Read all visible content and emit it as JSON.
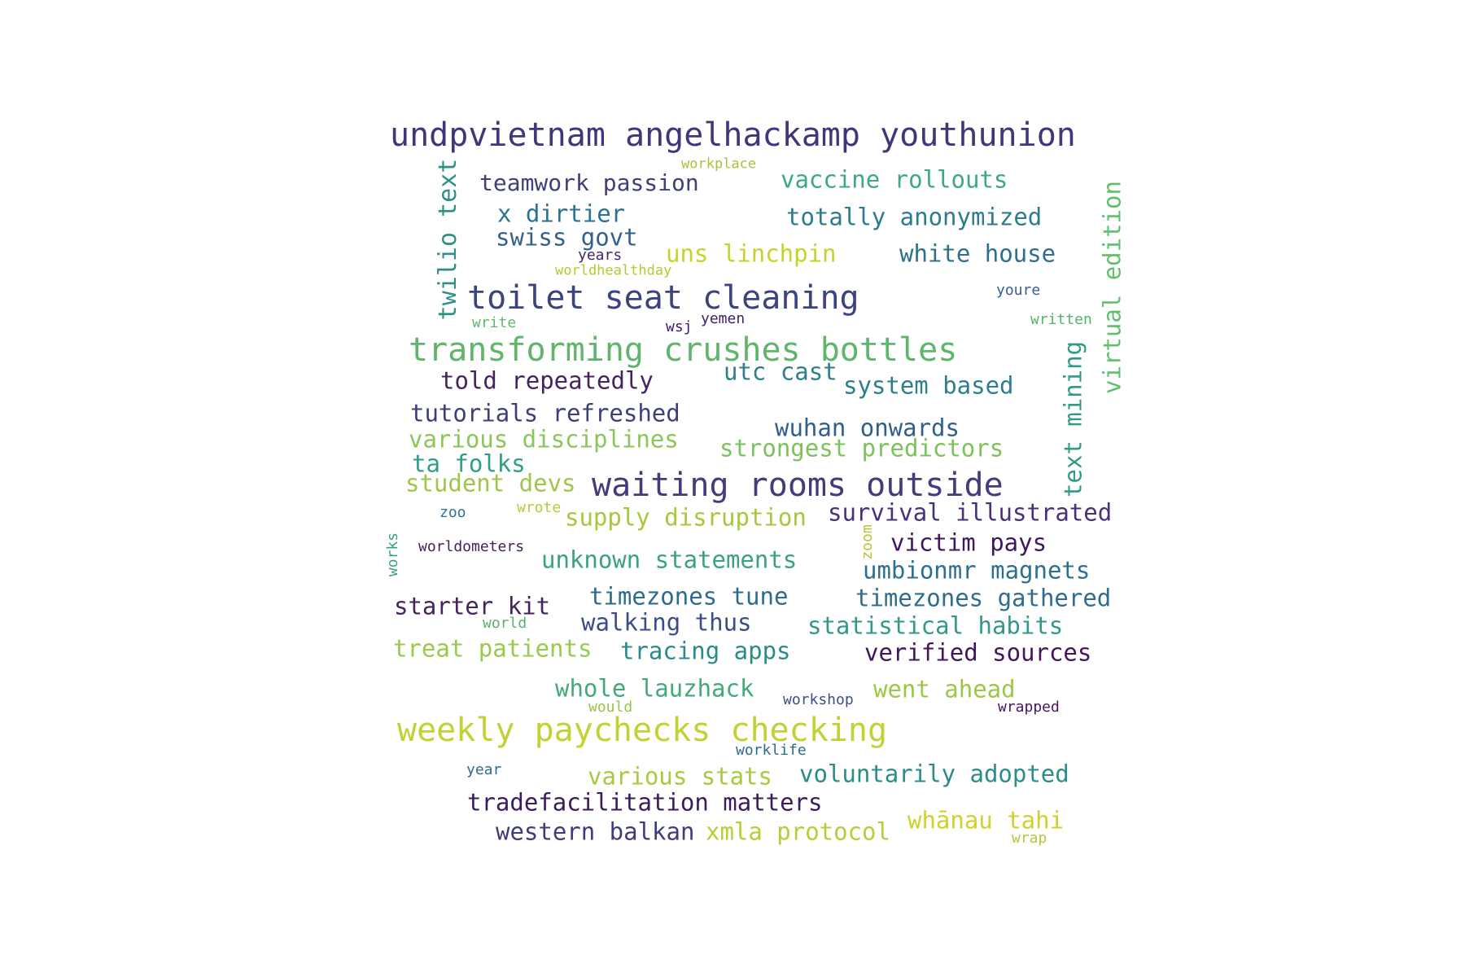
{
  "words": [
    {
      "text": "undpvietnam angelhackamp youthunion",
      "color": "#3f3779",
      "vertical": false
    },
    {
      "text": "workplace",
      "color": "#a9c23d",
      "vertical": false
    },
    {
      "text": "teamwork passion",
      "color": "#3f3f7a",
      "vertical": false
    },
    {
      "text": "vaccine rollouts",
      "color": "#3fa882",
      "vertical": false
    },
    {
      "text": "twilio text",
      "color": "#2f8f86",
      "vertical": true
    },
    {
      "text": "x dirtier",
      "color": "#2c728e",
      "vertical": false
    },
    {
      "text": "totally anonymized",
      "color": "#2c7b8e",
      "vertical": false
    },
    {
      "text": "virtual edition",
      "color": "#5fbf6a",
      "vertical": true
    },
    {
      "text": "swiss govt",
      "color": "#35608d",
      "vertical": false
    },
    {
      "text": "years",
      "color": "#45246f",
      "vertical": false
    },
    {
      "text": "uns linchpin",
      "color": "#c6d42a",
      "vertical": false
    },
    {
      "text": "white house",
      "color": "#2f6f8e",
      "vertical": false
    },
    {
      "text": "worldhealthday",
      "color": "#b8c830",
      "vertical": false
    },
    {
      "text": "toilet seat cleaning",
      "color": "#3b447f",
      "vertical": false
    },
    {
      "text": "youre",
      "color": "#35608d",
      "vertical": false
    },
    {
      "text": "written",
      "color": "#55b36b",
      "vertical": false
    },
    {
      "text": "write",
      "color": "#62b86a",
      "vertical": false
    },
    {
      "text": "wsj",
      "color": "#46156a",
      "vertical": false
    },
    {
      "text": "yemen",
      "color": "#40206b",
      "vertical": false
    },
    {
      "text": "transforming crushes bottles",
      "color": "#5fb56b",
      "vertical": false
    },
    {
      "text": "text mining",
      "color": "#2f9a86",
      "vertical": true
    },
    {
      "text": "told repeatedly",
      "color": "#44235f",
      "vertical": false
    },
    {
      "text": "utc cast",
      "color": "#2d7f8b",
      "vertical": false
    },
    {
      "text": "system based",
      "color": "#2c7e8d",
      "vertical": false
    },
    {
      "text": "tutorials refreshed",
      "color": "#3e3f7a",
      "vertical": false
    },
    {
      "text": "wuhan onwards",
      "color": "#2f5f8c",
      "vertical": false
    },
    {
      "text": "various disciplines",
      "color": "#8ac65a",
      "vertical": false
    },
    {
      "text": "strongest predictors",
      "color": "#7cc25c",
      "vertical": false
    },
    {
      "text": "ta folks",
      "color": "#2f9e86",
      "vertical": false
    },
    {
      "text": "student devs",
      "color": "#9fc64a",
      "vertical": false
    },
    {
      "text": "waiting rooms outside",
      "color": "#433b7c",
      "vertical": false
    },
    {
      "text": "zoo",
      "color": "#33728c",
      "vertical": false
    },
    {
      "text": "wrote",
      "color": "#bcc838",
      "vertical": false
    },
    {
      "text": "supply disruption",
      "color": "#a6c83c",
      "vertical": false
    },
    {
      "text": "survival illustrated",
      "color": "#46317a",
      "vertical": false
    },
    {
      "text": "works",
      "color": "#36a482",
      "vertical": true
    },
    {
      "text": "worldometers",
      "color": "#44215f",
      "vertical": false
    },
    {
      "text": "zoom",
      "color": "#b9c334",
      "vertical": true
    },
    {
      "text": "victim pays",
      "color": "#40175e",
      "vertical": false
    },
    {
      "text": "unknown statements",
      "color": "#3aa181",
      "vertical": false
    },
    {
      "text": "umbionmr magnets",
      "color": "#2c6f8e",
      "vertical": false
    },
    {
      "text": "starter kit",
      "color": "#45235f",
      "vertical": false
    },
    {
      "text": "timezones tune",
      "color": "#2d6b8e",
      "vertical": false
    },
    {
      "text": "timezones gathered",
      "color": "#2f6c8e",
      "vertical": false
    },
    {
      "text": "world",
      "color": "#57b36c",
      "vertical": false
    },
    {
      "text": "walking thus",
      "color": "#3a4d86",
      "vertical": false
    },
    {
      "text": "statistical habits",
      "color": "#33978a",
      "vertical": false
    },
    {
      "text": "treat patients",
      "color": "#99c94d",
      "vertical": false
    },
    {
      "text": "tracing apps",
      "color": "#2c8a8a",
      "vertical": false
    },
    {
      "text": "verified sources",
      "color": "#43155c",
      "vertical": false
    },
    {
      "text": "whole lauzhack",
      "color": "#42a979",
      "vertical": false
    },
    {
      "text": "went ahead",
      "color": "#9cc747",
      "vertical": false
    },
    {
      "text": "would",
      "color": "#97c54a",
      "vertical": false
    },
    {
      "text": "workshop",
      "color": "#3f4f85",
      "vertical": false
    },
    {
      "text": "wrapped",
      "color": "#48155f",
      "vertical": false
    },
    {
      "text": "weekly paychecks checking",
      "color": "#c2d133",
      "vertical": false
    },
    {
      "text": "worklife",
      "color": "#2e6c8d",
      "vertical": false
    },
    {
      "text": "year",
      "color": "#326a8a",
      "vertical": false
    },
    {
      "text": "various stats",
      "color": "#a8ca3e",
      "vertical": false
    },
    {
      "text": "voluntarily adopted",
      "color": "#2c8c8a",
      "vertical": false
    },
    {
      "text": "tradefacilitation matters",
      "color": "#3b1a5e",
      "vertical": false
    },
    {
      "text": "whānau tahi",
      "color": "#d0d12c",
      "vertical": false
    },
    {
      "text": "western balkan",
      "color": "#3e3d7a",
      "vertical": false
    },
    {
      "text": "xmla protocol",
      "color": "#b7ce36",
      "vertical": false
    },
    {
      "text": "wrap",
      "color": "#b8c837",
      "vertical": false
    }
  ]
}
